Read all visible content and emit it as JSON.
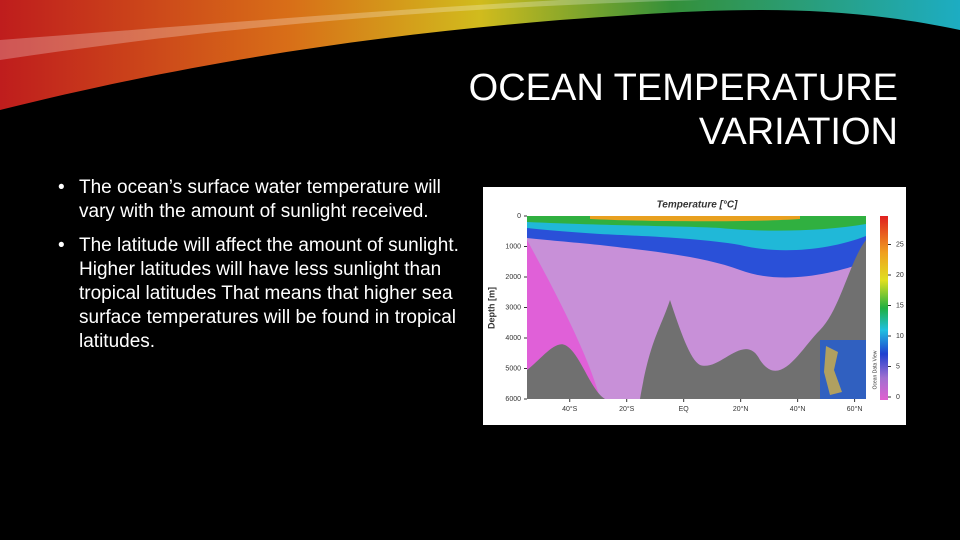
{
  "slide": {
    "title": [
      "OCEAN TEMPERATURE",
      "VARIATION"
    ],
    "bullets": [
      "The ocean’s surface water temperature will vary with the amount of sunlight received.",
      "The latitude will affect the amount of sunlight. Higher latitudes will have less sunlight than tropical latitudes That means that higher sea surface temperatures will be found in tropical latitudes."
    ],
    "figure": {
      "title": "Temperature [°C]",
      "y_label": "Depth [m]",
      "ylim": [
        0,
        6000
      ],
      "yticks": [
        0,
        1000,
        2000,
        3000,
        4000,
        5000,
        6000
      ],
      "xlim": [
        -55,
        64
      ],
      "xticks": [
        {
          "value": -40,
          "label": "40°S"
        },
        {
          "value": -20,
          "label": "20°S"
        },
        {
          "value": 0,
          "label": "EQ"
        },
        {
          "value": 20,
          "label": "20°N"
        },
        {
          "value": 40,
          "label": "40°N"
        },
        {
          "value": 60,
          "label": "60°N"
        }
      ],
      "clim": [
        0,
        30
      ],
      "cticks": [
        0,
        5,
        10,
        15,
        20,
        25
      ],
      "credit": "Ocean Data View"
    }
  }
}
